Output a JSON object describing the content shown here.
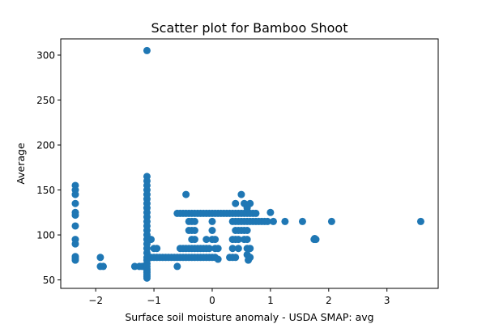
{
  "chart_data": {
    "type": "scatter",
    "title": "Scatter plot for Bamboo Shoot",
    "xlabel": "Surface soil moisture anomaly  - USDA SMAP: avg",
    "ylabel": "Average",
    "xlim": [
      -2.6,
      3.88
    ],
    "ylim": [
      40.6,
      318
    ],
    "xticks": [
      -2,
      -1,
      0,
      1,
      2,
      3
    ],
    "yticks": [
      50,
      100,
      150,
      200,
      250,
      300
    ],
    "grid": false,
    "legend": "none",
    "color": "#1f77b4",
    "series": [
      {
        "points": [
          [
            -2.35,
            155
          ],
          [
            -2.35,
            150
          ],
          [
            -2.35,
            145
          ],
          [
            -2.35,
            135
          ],
          [
            -2.35,
            125
          ],
          [
            -2.35,
            122
          ],
          [
            -2.35,
            110
          ],
          [
            -2.35,
            95
          ],
          [
            -2.35,
            90
          ],
          [
            -2.35,
            76
          ],
          [
            -2.35,
            74
          ],
          [
            -2.35,
            72
          ],
          [
            -1.92,
            75
          ],
          [
            -1.92,
            65
          ],
          [
            -1.87,
            65
          ],
          [
            -1.33,
            65
          ],
          [
            -1.25,
            65
          ],
          [
            -1.2,
            65
          ],
          [
            -1.12,
            305
          ],
          [
            -1.12,
            165
          ],
          [
            -1.12,
            160
          ],
          [
            -1.12,
            155
          ],
          [
            -1.12,
            150
          ],
          [
            -1.12,
            145
          ],
          [
            -1.12,
            140
          ],
          [
            -1.12,
            135
          ],
          [
            -1.12,
            130
          ],
          [
            -1.12,
            125
          ],
          [
            -1.12,
            120
          ],
          [
            -1.12,
            115
          ],
          [
            -1.12,
            110
          ],
          [
            -1.12,
            105
          ],
          [
            -1.12,
            100
          ],
          [
            -1.12,
            95
          ],
          [
            -1.12,
            90
          ],
          [
            -1.12,
            85
          ],
          [
            -1.12,
            80
          ],
          [
            -1.12,
            75
          ],
          [
            -1.12,
            72
          ],
          [
            -1.12,
            68
          ],
          [
            -1.12,
            65
          ],
          [
            -1.12,
            62
          ],
          [
            -1.12,
            60
          ],
          [
            -1.12,
            58
          ],
          [
            -1.12,
            56
          ],
          [
            -1.12,
            54
          ],
          [
            -1.12,
            52
          ],
          [
            -1.05,
            95
          ],
          [
            -1.05,
            75
          ],
          [
            -1.0,
            85
          ],
          [
            -0.95,
            85
          ],
          [
            -1.0,
            75
          ],
          [
            -0.95,
            75
          ],
          [
            -0.9,
            75
          ],
          [
            -0.85,
            75
          ],
          [
            -0.8,
            75
          ],
          [
            -0.75,
            75
          ],
          [
            -0.7,
            75
          ],
          [
            -0.65,
            75
          ],
          [
            -0.6,
            75
          ],
          [
            -0.55,
            75
          ],
          [
            -0.5,
            75
          ],
          [
            -0.45,
            75
          ],
          [
            -0.4,
            75
          ],
          [
            -0.35,
            75
          ],
          [
            -0.3,
            75
          ],
          [
            -0.25,
            75
          ],
          [
            -0.2,
            75
          ],
          [
            -0.15,
            75
          ],
          [
            -0.1,
            75
          ],
          [
            -0.05,
            75
          ],
          [
            0.0,
            75
          ],
          [
            0.05,
            75
          ],
          [
            0.1,
            73
          ],
          [
            -0.6,
            65
          ],
          [
            -0.55,
            85
          ],
          [
            -0.5,
            85
          ],
          [
            -0.45,
            85
          ],
          [
            -0.4,
            85
          ],
          [
            -0.35,
            85
          ],
          [
            -0.3,
            85
          ],
          [
            -0.25,
            85
          ],
          [
            -0.2,
            85
          ],
          [
            -0.15,
            85
          ],
          [
            -0.1,
            85
          ],
          [
            -0.05,
            85
          ],
          [
            -0.35,
            95
          ],
          [
            -0.3,
            95
          ],
          [
            -0.1,
            95
          ],
          [
            0.0,
            95
          ],
          [
            0.05,
            95
          ],
          [
            -0.45,
            145
          ],
          [
            -0.4,
            105
          ],
          [
            -0.35,
            105
          ],
          [
            -0.3,
            105
          ],
          [
            -0.4,
            115
          ],
          [
            -0.35,
            115
          ],
          [
            -0.3,
            115
          ],
          [
            -0.6,
            124
          ],
          [
            -0.55,
            124
          ],
          [
            -0.5,
            124
          ],
          [
            -0.45,
            124
          ],
          [
            -0.4,
            124
          ],
          [
            -0.35,
            124
          ],
          [
            -0.3,
            124
          ],
          [
            -0.25,
            124
          ],
          [
            -0.2,
            124
          ],
          [
            -0.15,
            124
          ],
          [
            -0.1,
            124
          ],
          [
            -0.05,
            124
          ],
          [
            0.0,
            124
          ],
          [
            0.05,
            124
          ],
          [
            0.1,
            124
          ],
          [
            0.15,
            124
          ],
          [
            0.2,
            124
          ],
          [
            0.25,
            124
          ],
          [
            0.3,
            124
          ],
          [
            0.35,
            124
          ],
          [
            0.4,
            124
          ],
          [
            0.45,
            124
          ],
          [
            0.5,
            124
          ],
          [
            0.55,
            124
          ],
          [
            0.6,
            124
          ],
          [
            0.65,
            124
          ],
          [
            0.7,
            124
          ],
          [
            0.75,
            124
          ],
          [
            0.0,
            105
          ],
          [
            0.0,
            115
          ],
          [
            0.05,
            85
          ],
          [
            0.1,
            85
          ],
          [
            0.3,
            75
          ],
          [
            0.35,
            75
          ],
          [
            0.4,
            75
          ],
          [
            0.35,
            85
          ],
          [
            0.45,
            85
          ],
          [
            0.35,
            95
          ],
          [
            0.4,
            95
          ],
          [
            0.45,
            95
          ],
          [
            0.4,
            105
          ],
          [
            0.45,
            105
          ],
          [
            0.4,
            135
          ],
          [
            0.5,
            145
          ],
          [
            0.55,
            135
          ],
          [
            0.6,
            130
          ],
          [
            0.65,
            135
          ],
          [
            0.35,
            115
          ],
          [
            0.4,
            115
          ],
          [
            0.45,
            115
          ],
          [
            0.5,
            115
          ],
          [
            0.55,
            115
          ],
          [
            0.6,
            115
          ],
          [
            0.65,
            115
          ],
          [
            0.7,
            115
          ],
          [
            0.75,
            115
          ],
          [
            0.8,
            115
          ],
          [
            0.85,
            115
          ],
          [
            0.9,
            115
          ],
          [
            0.95,
            115
          ],
          [
            1.05,
            115
          ],
          [
            1.25,
            115
          ],
          [
            1.55,
            115
          ],
          [
            2.05,
            115
          ],
          [
            3.58,
            115
          ],
          [
            0.5,
            105
          ],
          [
            0.55,
            105
          ],
          [
            0.6,
            105
          ],
          [
            0.55,
            95
          ],
          [
            0.6,
            95
          ],
          [
            0.6,
            85
          ],
          [
            0.65,
            85
          ],
          [
            0.6,
            78
          ],
          [
            0.65,
            75
          ],
          [
            0.62,
            72
          ],
          [
            1.0,
            125
          ],
          [
            1.75,
            95
          ],
          [
            1.78,
            95
          ],
          [
            1.76,
            96
          ]
        ]
      }
    ]
  }
}
